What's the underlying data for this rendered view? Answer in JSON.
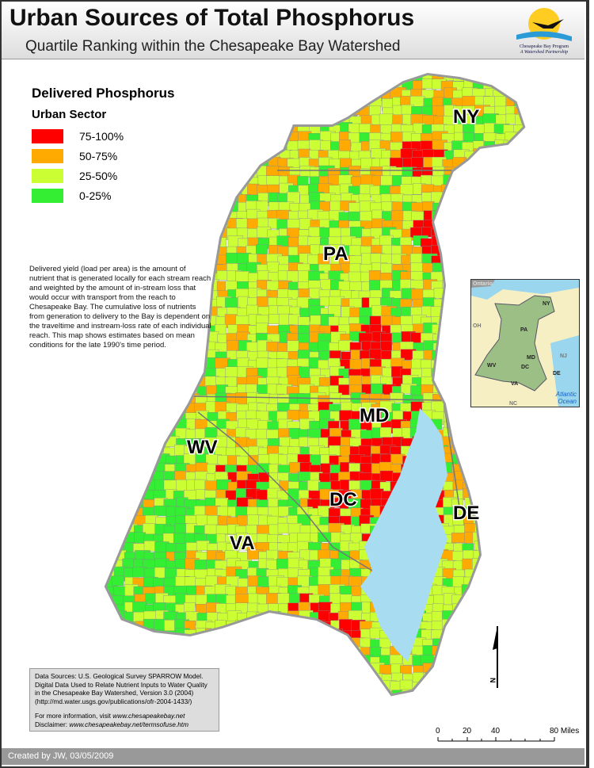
{
  "header": {
    "title": "Urban Sources of Total Phosphorus",
    "subtitle": "Quartile Ranking within the Chesapeake Bay Watershed",
    "logo": {
      "line1": "Chesapeake Bay Program",
      "line2": "A Watershed Partnership"
    }
  },
  "legend": {
    "title": "Delivered Phosphorus",
    "subtitle": "Urban Sector",
    "items": [
      {
        "label": "75-100%",
        "color": "#ff0000"
      },
      {
        "label": "50-75%",
        "color": "#ffaa00"
      },
      {
        "label": "25-50%",
        "color": "#ccff33"
      },
      {
        "label": "0-25%",
        "color": "#33ee33"
      }
    ]
  },
  "description": "Delivered yield (load per area) is the amount of nutrient that is generated locally for each stream reach and weighted by the amount of in-stream loss that would occur with transport from the reach to Chesapeake Bay. The cumulative loss of nutrients from generation to delivery to the Bay is dependent on the traveltime and instream-loss rate of each individual reach.  This map shows estimates based on mean conditions for the late 1990's time period.",
  "states": [
    "NY",
    "PA",
    "MD",
    "WV",
    "DC",
    "DE",
    "VA"
  ],
  "inset": {
    "labels": [
      "Ontario",
      "NY",
      "OH",
      "PA",
      "NJ",
      "MD",
      "WV",
      "DC",
      "DE",
      "VA",
      "NC",
      "Atlantic Ocean"
    ],
    "watershed_color": "#9cbf86",
    "water_color": "#9ad6ee",
    "land_color": "#f6efc4"
  },
  "water_color": "#a8dcf0",
  "north_label": "N",
  "scale": {
    "ticks": [
      "0",
      "20",
      "40",
      "80 Miles"
    ]
  },
  "sources": {
    "line1": "Data Sources:  U.S. Geological Survey SPARROW Model.",
    "line2": "Digital Data Used to Relate Nutrient Inputs to Water Quality",
    "line3": "in the Chesapeake Bay Watershed, Version 3.0 (2004)",
    "line4": "(http://md.water.usgs.gov/publications/ofr-2004-1433/)",
    "info_prefix": "For more information, visit ",
    "info_link": "www.chesapeakebay.net",
    "disclaimer_prefix": "Disclaimer: ",
    "disclaimer_link": "www.chesapeakebay.net/termsofuse.htm"
  },
  "footer": "Created by JW, 03/05/2009"
}
